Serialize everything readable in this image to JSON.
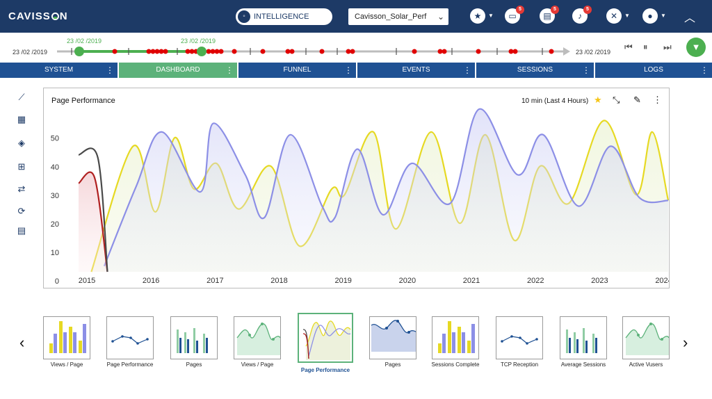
{
  "app": {
    "brand": "CAVISSON"
  },
  "topbar": {
    "intelligence_label": "INTELLIGENCE MODE",
    "session_select": "Cavisson_Solar_Perf",
    "icons": [
      {
        "name": "favorites-icon",
        "glyph": "★",
        "badge": ""
      },
      {
        "name": "monitor-icon",
        "glyph": "▭",
        "badge": "5"
      },
      {
        "name": "report-icon",
        "glyph": "▤",
        "badge": "5"
      },
      {
        "name": "notifications-icon",
        "glyph": "🔔",
        "badge": "5"
      },
      {
        "name": "tools-icon",
        "glyph": "✕",
        "badge": ""
      },
      {
        "name": "user-icon",
        "glyph": "●",
        "badge": ""
      }
    ]
  },
  "timeline": {
    "start_date": "23 /02 /2019",
    "end_date": "23 /02 /2019",
    "marker1_date": "23 /02 /2019",
    "marker2_date": "23 /02 /2019",
    "controls": {
      "first": "⏮",
      "pause": "⏸",
      "last": "⏭"
    }
  },
  "tabs": [
    {
      "label": "SYSTEM",
      "active": false
    },
    {
      "label": "DASHBOARD",
      "active": true
    },
    {
      "label": "FUNNEL",
      "active": false
    },
    {
      "label": "EVENTS",
      "active": false
    },
    {
      "label": "SESSIONS",
      "active": false
    },
    {
      "label": "LOGS",
      "active": false
    }
  ],
  "sidetools": [
    {
      "name": "trend-icon",
      "glyph": "⟋"
    },
    {
      "name": "layout-icon",
      "glyph": "▦"
    },
    {
      "name": "widgets-icon",
      "glyph": "◈"
    },
    {
      "name": "add-monitor-icon",
      "glyph": "⊞"
    },
    {
      "name": "compare-icon",
      "glyph": "⇄"
    },
    {
      "name": "refresh-icon",
      "glyph": "⟳"
    },
    {
      "name": "table-icon",
      "glyph": "▤"
    }
  ],
  "card": {
    "title": "Page Performance",
    "range": "10 min (Last 4 Hours)"
  },
  "chart_data": {
    "type": "area",
    "x": [
      "2015",
      "2016",
      "2017",
      "2018",
      "2019",
      "2020",
      "2021",
      "2022",
      "2023",
      "2024"
    ],
    "ylim": [
      0,
      57
    ],
    "yticks": [
      0,
      10,
      20,
      30,
      40,
      50
    ],
    "series": [
      {
        "color": "#8c8fe6",
        "points": [
          [
            2015.4,
            2
          ],
          [
            2015.9,
            30
          ],
          [
            2016.3,
            49
          ],
          [
            2016.9,
            28
          ],
          [
            2017.1,
            52
          ],
          [
            2017.6,
            34
          ],
          [
            2017.9,
            19
          ],
          [
            2018.3,
            48
          ],
          [
            2018.8,
            23
          ],
          [
            2019.0,
            19
          ],
          [
            2019.35,
            43
          ],
          [
            2019.75,
            20
          ],
          [
            2020.2,
            38
          ],
          [
            2020.8,
            24
          ],
          [
            2021.25,
            57
          ],
          [
            2021.85,
            34
          ],
          [
            2022.25,
            48
          ],
          [
            2022.8,
            23
          ],
          [
            2023.3,
            44
          ],
          [
            2023.75,
            26
          ],
          [
            2024.2,
            25
          ]
        ]
      },
      {
        "color": "#e6d923",
        "points": [
          [
            2015.2,
            0
          ],
          [
            2015.85,
            44
          ],
          [
            2016.2,
            21
          ],
          [
            2016.5,
            47
          ],
          [
            2016.8,
            29
          ],
          [
            2017.15,
            38
          ],
          [
            2017.5,
            22
          ],
          [
            2018.0,
            37
          ],
          [
            2018.45,
            9
          ],
          [
            2018.95,
            29
          ],
          [
            2019.15,
            27
          ],
          [
            2019.6,
            49
          ],
          [
            2019.95,
            15
          ],
          [
            2020.5,
            49
          ],
          [
            2020.95,
            17
          ],
          [
            2021.35,
            48
          ],
          [
            2021.8,
            11
          ],
          [
            2022.2,
            37
          ],
          [
            2022.65,
            24
          ],
          [
            2023.2,
            53
          ],
          [
            2023.7,
            27
          ],
          [
            2023.95,
            49
          ],
          [
            2024.2,
            25
          ]
        ]
      },
      {
        "color": "#4a4a4a",
        "points": [
          [
            2015.0,
            41
          ],
          [
            2015.3,
            40
          ],
          [
            2015.45,
            0
          ]
        ]
      },
      {
        "color": "#b02020",
        "points": [
          [
            2015.0,
            31
          ],
          [
            2015.25,
            33
          ],
          [
            2015.45,
            0
          ]
        ]
      }
    ]
  },
  "thumbnails": [
    {
      "label": "Views / Page",
      "kind": "bar"
    },
    {
      "label": "Page Performance",
      "kind": "line"
    },
    {
      "label": "Pages",
      "kind": "bar2"
    },
    {
      "label": "Views / Page",
      "kind": "wave"
    },
    {
      "label": "Page Performance",
      "kind": "current",
      "active": true
    },
    {
      "label": "Pages",
      "kind": "area"
    },
    {
      "label": "Sessions Complete",
      "kind": "bar"
    },
    {
      "label": "TCP Reception",
      "kind": "line"
    },
    {
      "label": "Average Sessions",
      "kind": "bar2"
    },
    {
      "label": "Active Vusers",
      "kind": "wave"
    }
  ],
  "nav": {
    "prev": "‹",
    "next": "›"
  },
  "colors": {
    "navy": "#1d3a66",
    "tab_blue": "#1f5193",
    "green": "#5cb27a",
    "alert_red": "#e53935"
  }
}
